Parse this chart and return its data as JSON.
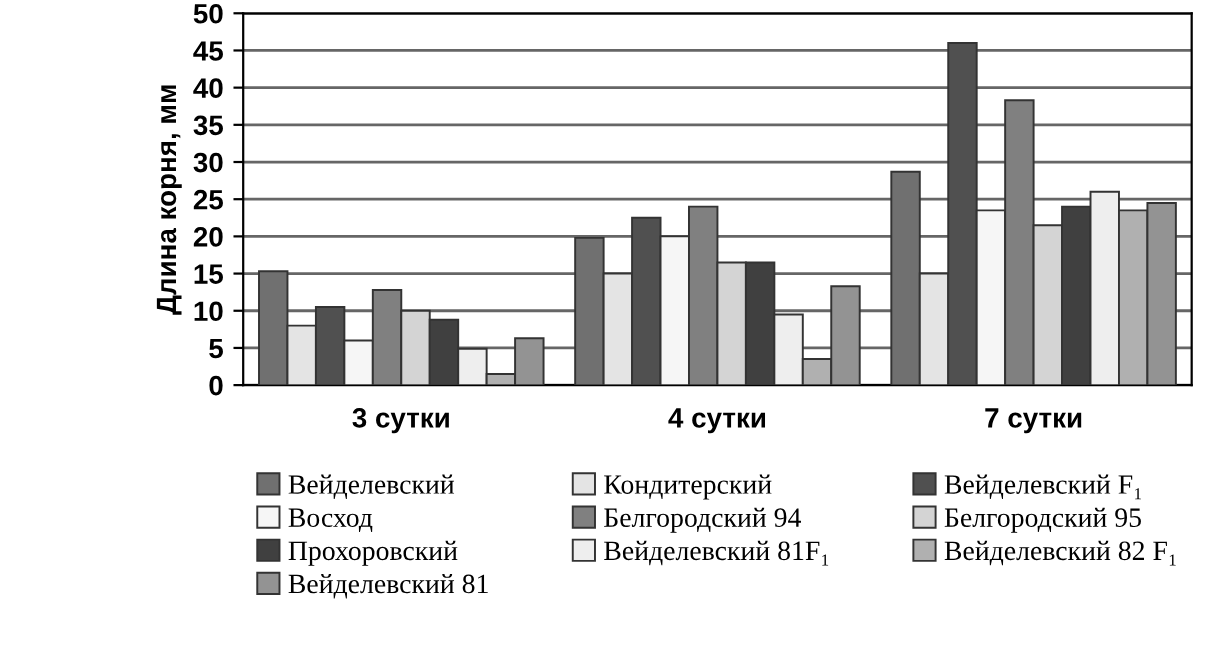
{
  "chart_data": {
    "type": "bar",
    "ylabel": "Длина корня, мм",
    "categories": [
      "3 сутки",
      "4 сутки",
      "7 сутки"
    ],
    "series": [
      {
        "name": "Вейделевский",
        "color": "#707070",
        "values": [
          15.3,
          19.8,
          28.7
        ]
      },
      {
        "name": "Кондитерский",
        "color": "#e4e4e4",
        "values": [
          8,
          15,
          15
        ]
      },
      {
        "name": "Вейделевский F₁",
        "color": "#505050",
        "values": [
          10.5,
          22.5,
          46
        ]
      },
      {
        "name": "Восход",
        "color": "#f6f6f6",
        "values": [
          6,
          20,
          23.5
        ]
      },
      {
        "name": "Белгородский 94",
        "color": "#808080",
        "values": [
          12.8,
          24,
          38.3
        ]
      },
      {
        "name": "Белгородский 95",
        "color": "#d4d4d4",
        "values": [
          10,
          16.5,
          21.5
        ]
      },
      {
        "name": "Прохоровский",
        "color": "#404040",
        "values": [
          8.8,
          16.5,
          24
        ]
      },
      {
        "name": "Вейделевский 81F₁",
        "color": "#eeeeee",
        "values": [
          4.9,
          9.5,
          26
        ]
      },
      {
        "name": "Вейделевский 82 F₁",
        "color": "#b0b0b0",
        "values": [
          1.5,
          3.5,
          23.5
        ]
      },
      {
        "name": "Вейделевский 81",
        "color": "#939393",
        "values": [
          6.3,
          13.3,
          24.5
        ]
      }
    ],
    "ylim": [
      0,
      50
    ],
    "yticks": [
      0,
      5,
      10,
      15,
      20,
      25,
      30,
      35,
      40,
      45,
      50
    ],
    "grid": "y",
    "legend": "bottom"
  }
}
